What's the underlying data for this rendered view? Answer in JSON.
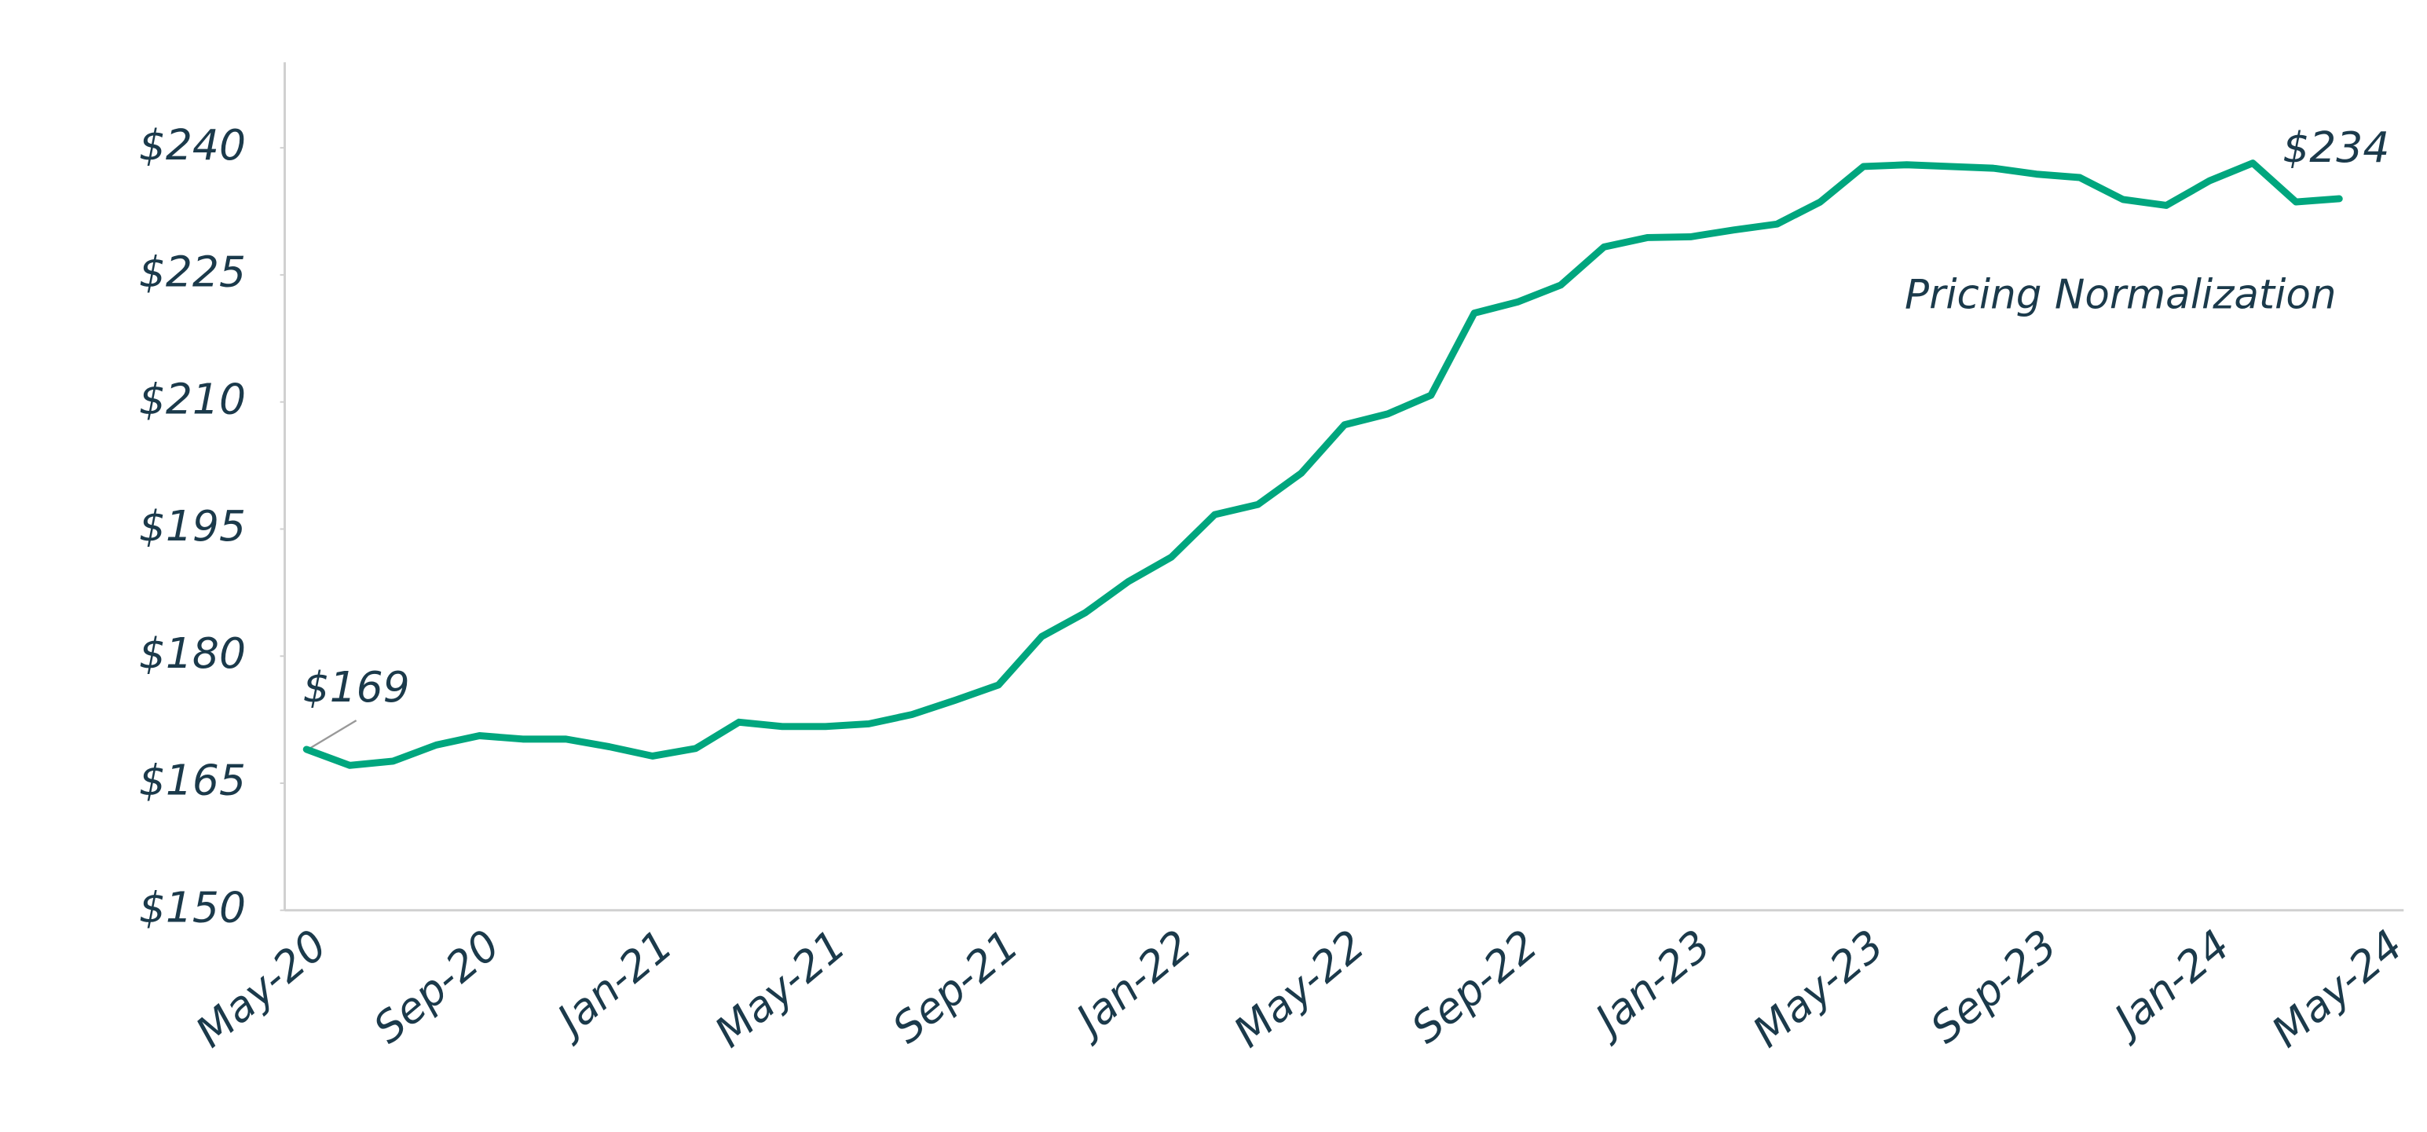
{
  "chart_data": {
    "type": "line",
    "categories": [
      "May-20",
      null,
      null,
      null,
      "Sep-20",
      null,
      null,
      null,
      "Jan-21",
      null,
      null,
      null,
      "May-21",
      null,
      null,
      null,
      "Sep-21",
      null,
      null,
      null,
      "Jan-22",
      null,
      null,
      null,
      "May-22",
      null,
      null,
      null,
      "Sep-22",
      null,
      null,
      null,
      "Jan-23",
      null,
      null,
      null,
      "May-23",
      null,
      null,
      null,
      "Sep-23",
      null,
      null,
      null,
      "Jan-24",
      null,
      null,
      null,
      "May-24"
    ],
    "series": [
      {
        "color": "#00a67e",
        "values": [
          169,
          167.1,
          167.6,
          169.5,
          170.6,
          170.2,
          170.2,
          169.3,
          168.2,
          169.1,
          172.2,
          171.7,
          171.7,
          172.0,
          173.1,
          174.8,
          176.6,
          182.3,
          185.1,
          188.8,
          191.7,
          196.7,
          197.9,
          201.6,
          207.3,
          208.6,
          210.8,
          220.5,
          221.8,
          223.8,
          228.3,
          229.4,
          229.5,
          230.3,
          231.0,
          233.6,
          237.8,
          238.0,
          237.8,
          237.6,
          236.9,
          236.5,
          233.9,
          233.2,
          236.1,
          238.2,
          233.6,
          234,
          null
        ],
        "value_labels": [
          "$169",
          null,
          null,
          null,
          null,
          null,
          null,
          null,
          null,
          null,
          null,
          null,
          null,
          null,
          null,
          null,
          null,
          null,
          null,
          null,
          null,
          null,
          null,
          null,
          null,
          null,
          null,
          null,
          null,
          null,
          null,
          null,
          null,
          null,
          null,
          null,
          null,
          null,
          null,
          null,
          null,
          null,
          null,
          null,
          null,
          null,
          null,
          "$234",
          null
        ]
      }
    ],
    "annotations": [
      "Pricing Normalization"
    ],
    "ylim": [
      150,
      250
    ],
    "yticks": [
      {
        "value": 150,
        "label": "$150"
      },
      {
        "value": 165,
        "label": "$165"
      },
      {
        "value": 180,
        "label": "$180"
      },
      {
        "value": 195,
        "label": "$195"
      },
      {
        "value": 210,
        "label": "$210"
      },
      {
        "value": 225,
        "label": "$225"
      },
      {
        "value": 240,
        "label": "$240"
      }
    ],
    "grid": false
  }
}
